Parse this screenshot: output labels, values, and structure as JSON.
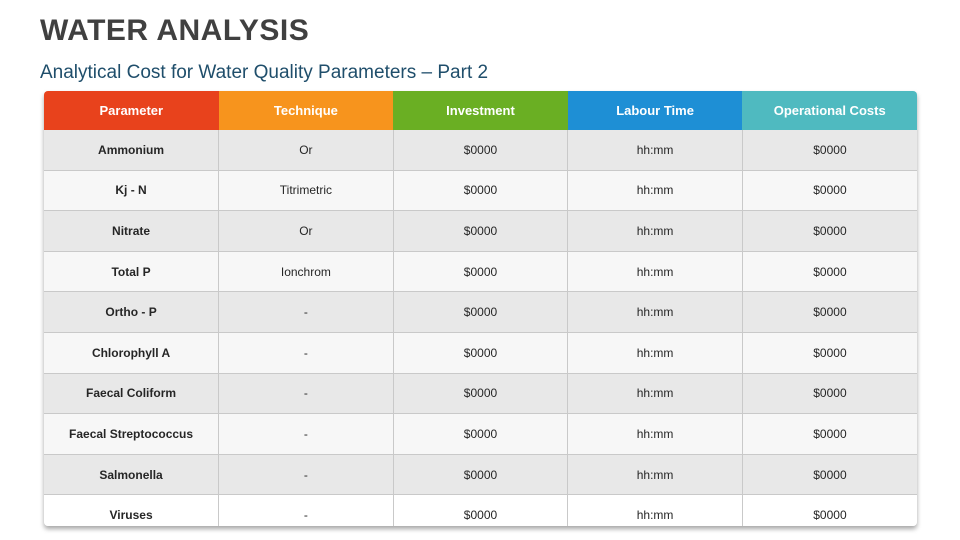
{
  "title": "WATER ANALYSIS",
  "subtitle": "Analytical Cost for Water Quality Parameters – Part 2",
  "table": {
    "headers": [
      "Parameter",
      "Technique",
      "Investment",
      "Labour Time",
      "Operational Costs"
    ],
    "header_colors": [
      "#e8421c",
      "#f7941d",
      "#6aaf23",
      "#1e8fd5",
      "#4fbac0"
    ],
    "rows": [
      [
        "Ammonium",
        "Or",
        "$0000",
        "hh:mm",
        "$0000"
      ],
      [
        "Kj - N",
        "Titrimetric",
        "$0000",
        "hh:mm",
        "$0000"
      ],
      [
        "Nitrate",
        "Or",
        "$0000",
        "hh:mm",
        "$0000"
      ],
      [
        "Total P",
        "Ionchrom",
        "$0000",
        "hh:mm",
        "$0000"
      ],
      [
        "Ortho - P",
        "-",
        "$0000",
        "hh:mm",
        "$0000"
      ],
      [
        "Chlorophyll A",
        "-",
        "$0000",
        "hh:mm",
        "$0000"
      ],
      [
        "Faecal Coliform",
        "-",
        "$0000",
        "hh:mm",
        "$0000"
      ],
      [
        "Faecal Streptococcus",
        "-",
        "$0000",
        "hh:mm",
        "$0000"
      ],
      [
        "Salmonella",
        "-",
        "$0000",
        "hh:mm",
        "$0000"
      ],
      [
        "Viruses",
        "-",
        "$0000",
        "hh:mm",
        "$0000"
      ]
    ]
  }
}
